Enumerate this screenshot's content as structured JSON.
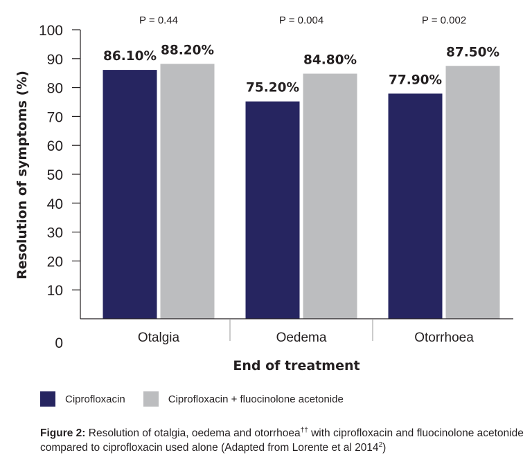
{
  "chart_data": {
    "type": "bar",
    "categories": [
      "Otalgia",
      "Oedema",
      "Otorrhoea"
    ],
    "series": [
      {
        "name": "Ciprofloxacin",
        "values": [
          86.1,
          75.2,
          77.9
        ],
        "labels": [
          "86.10%",
          "75.20%",
          "77.90%"
        ],
        "color": "#262560"
      },
      {
        "name": "Ciprofloxacin + fluocinolone acetonide",
        "values": [
          88.2,
          84.8,
          87.5
        ],
        "labels": [
          "88.20%",
          "84.80%",
          "87.50%"
        ],
        "color": "#bcbdbf"
      }
    ],
    "p_values": [
      "P = 0.44",
      "P = 0.004",
      "P = 0.002"
    ],
    "xlabel": "End of treatment",
    "ylabel": "Resolution of symptoms (%)",
    "ylim": [
      0,
      100
    ],
    "yticks": [
      0,
      10,
      20,
      30,
      40,
      50,
      60,
      70,
      80,
      90,
      100
    ],
    "ytick_labels": [
      "0",
      "10",
      "20",
      "30",
      "40",
      "50",
      "60",
      "70",
      "80",
      "90",
      "100"
    ],
    "grid": false,
    "legend_position": "bottom-left"
  },
  "legend": {
    "items": [
      {
        "label": "Ciprofloxacin",
        "color": "#262560"
      },
      {
        "label": "Ciprofloxacin + fluocinolone acetonide",
        "color": "#bcbdbf"
      }
    ]
  },
  "caption": {
    "prefix": "Figure 2:",
    "text_1": " Resolution of otalgia, oedema and otorrhoea",
    "sup_1": "††",
    "text_2": " with ciprofloxacin and fluocinolone acetonide compared to ciprofloxacin used alone (Adapted from Lorente et al 2014",
    "sup_2": "2",
    "text_3": ")"
  }
}
